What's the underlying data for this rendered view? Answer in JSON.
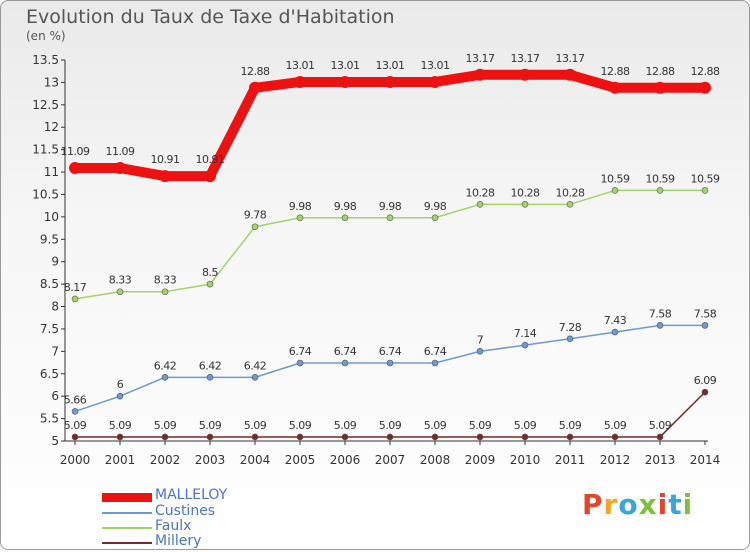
{
  "title": "Evolution du Taux de Taxe d'Habitation",
  "subtitle": "(en %)",
  "logo": {
    "text": "Proxiti",
    "colors": [
      "#e2452f",
      "#f5a623",
      "#3aa4db",
      "#7fbf3f",
      "#e2452f",
      "#3aa4db",
      "#7fbf3f"
    ]
  },
  "chart_data": {
    "type": "line",
    "title": "Evolution du Taux de Taxe d'Habitation",
    "ylabel": "(en %)",
    "xlabel": "",
    "x": [
      "2000",
      "2001",
      "2002",
      "2003",
      "2004",
      "2005",
      "2006",
      "2007",
      "2008",
      "2009",
      "2010",
      "2011",
      "2012",
      "2013",
      "2014"
    ],
    "ylim": [
      5,
      13.5
    ],
    "yticks": [
      "5",
      "5.5",
      "6",
      "6.5",
      "7",
      "7.5",
      "8",
      "8.5",
      "9",
      "9.5",
      "10",
      "10.5",
      "11",
      "11.5",
      "12",
      "12.5",
      "13",
      "13.5"
    ],
    "grid": false,
    "legend": "bottom-left",
    "series": [
      {
        "name": "MALLELOY",
        "color": "#ee1111",
        "emphasis": true,
        "values": [
          11.09,
          11.09,
          10.91,
          10.91,
          12.88,
          13.01,
          13.01,
          13.01,
          13.01,
          13.17,
          13.17,
          13.17,
          12.88,
          12.88,
          12.88
        ],
        "labels": [
          "11.09",
          "11.09",
          "10.91",
          "10.91",
          "12.88",
          "13.01",
          "13.01",
          "13.01",
          "13.01",
          "13.17",
          "13.17",
          "13.17",
          "12.88",
          "12.88",
          "12.88"
        ]
      },
      {
        "name": "Custines",
        "color": "#6b9bd1",
        "values": [
          5.66,
          6,
          6.42,
          6.42,
          6.42,
          6.74,
          6.74,
          6.74,
          6.74,
          7,
          7.14,
          7.28,
          7.43,
          7.58,
          7.58
        ],
        "labels": [
          "5.66",
          "6",
          "6.42",
          "6.42",
          "6.42",
          "6.74",
          "6.74",
          "6.74",
          "6.74",
          "7",
          "7.14",
          "7.28",
          "7.43",
          "7.58",
          "7.58"
        ]
      },
      {
        "name": "Faulx",
        "color": "#a3d36b",
        "values": [
          8.17,
          8.33,
          8.33,
          8.5,
          9.78,
          9.98,
          9.98,
          9.98,
          9.98,
          10.28,
          10.28,
          10.28,
          10.59,
          10.59,
          10.59
        ],
        "labels": [
          "8.17",
          "8.33",
          "8.33",
          "8.5",
          "9.78",
          "9.98",
          "9.98",
          "9.98",
          "9.98",
          "10.28",
          "10.28",
          "10.28",
          "10.59",
          "10.59",
          "10.59"
        ]
      },
      {
        "name": "Millery",
        "color": "#7a2828",
        "values": [
          5.09,
          5.09,
          5.09,
          5.09,
          5.09,
          5.09,
          5.09,
          5.09,
          5.09,
          5.09,
          5.09,
          5.09,
          5.09,
          5.09,
          6.09
        ],
        "labels": [
          "5.09",
          "5.09",
          "5.09",
          "5.09",
          "5.09",
          "5.09",
          "5.09",
          "5.09",
          "5.09",
          "5.09",
          "5.09",
          "5.09",
          "5.09",
          "5.09",
          "6.09"
        ]
      }
    ]
  }
}
